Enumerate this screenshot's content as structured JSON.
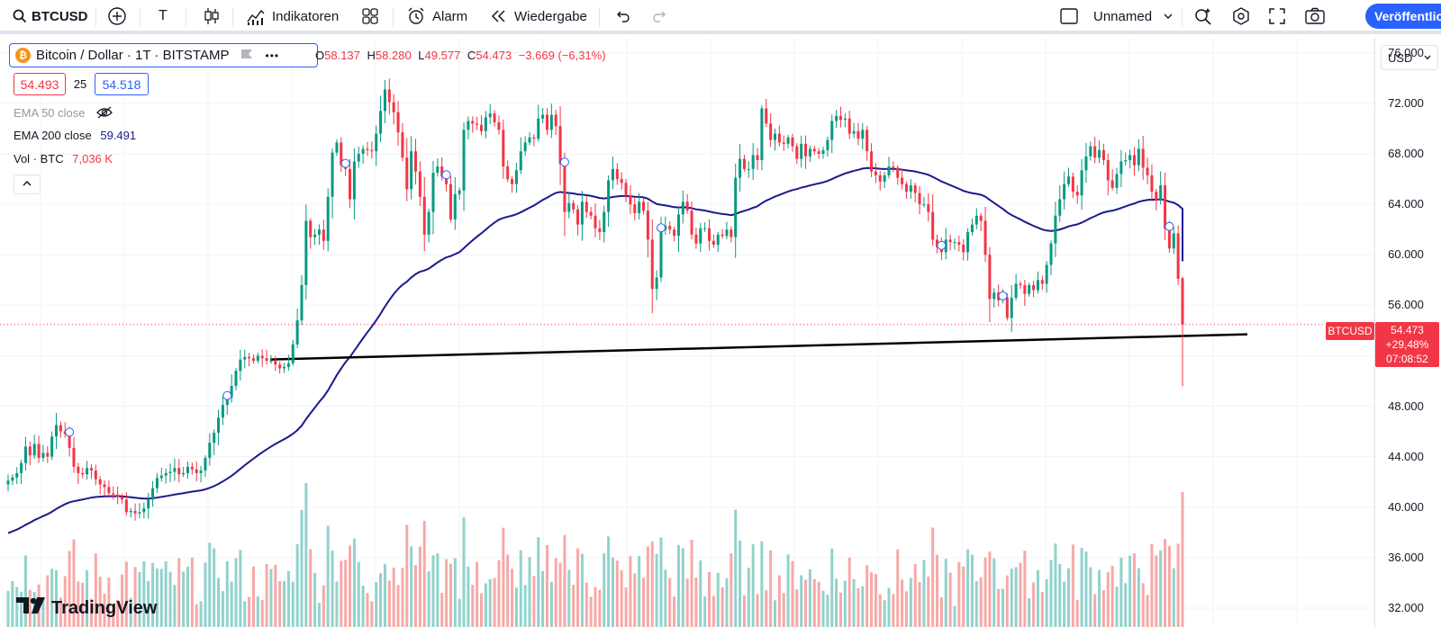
{
  "toolbar": {
    "symbol": "BTCUSD",
    "text_tool": "T",
    "indicators_label": "Indikatoren",
    "alert_label": "Alarm",
    "replay_label": "Wiedergabe",
    "layout_name": "Unnamed",
    "publish_label": "Veröffentlichen"
  },
  "legend": {
    "title": "Bitcoin / Dollar · 1T · BITSTAMP",
    "coin_glyph": "₿",
    "more": "•••",
    "ohlc": {
      "o_label": "O",
      "o": "58.137",
      "h_label": "H",
      "h": "58.280",
      "l_label": "L",
      "l": "49.577",
      "c_label": "C",
      "c": "54.473",
      "change": "−3.669 (−6,31%)"
    },
    "bid": "54.493",
    "spread": "25",
    "ask": "54.518",
    "indicators": [
      {
        "name": "EMA 50 close",
        "value": ""
      },
      {
        "name": "EMA 200 close",
        "value": "59.491"
      },
      {
        "name": "Vol · BTC",
        "value": "7,036 K"
      }
    ]
  },
  "price_scale": {
    "currency": "USD",
    "ticks": [
      "76.000",
      "72.000",
      "68.000",
      "64.000",
      "60.000",
      "56.000",
      "48.000",
      "44.000",
      "40.000",
      "36.000",
      "32.000"
    ],
    "symbol_label": "BTCUSD",
    "last_price": "54.473",
    "last_change": "+29,48%",
    "countdown": "07:08:52"
  },
  "colors": {
    "up": "#089981",
    "down": "#f23645",
    "up_vol": "#92d2cc",
    "down_vol": "#f7a9a7",
    "ema200": "#1a1a8e",
    "trendline": "#000000",
    "accent": "#2962ff"
  },
  "branding": {
    "logo_text": "TradingView"
  },
  "chart_data": {
    "type": "candlestick",
    "symbol": "BTCUSD",
    "timeframe": "1T",
    "exchange": "BITSTAMP",
    "ylim": [
      30500,
      77200
    ],
    "last_close": 54473,
    "closes": [
      42100,
      42350,
      42700,
      43500,
      44800,
      44100,
      45000,
      43900,
      44300,
      44000,
      45600,
      46500,
      46000,
      45800,
      44700,
      43200,
      42700,
      42600,
      43100,
      42900,
      42200,
      41800,
      41600,
      41100,
      41000,
      40800,
      40600,
      39600,
      39700,
      39500,
      39600,
      39900,
      40600,
      41500,
      42300,
      42500,
      42700,
      42800,
      43100,
      42600,
      42700,
      43200,
      43000,
      42700,
      42900,
      43900,
      45100,
      45900,
      47100,
      48100,
      48700,
      49600,
      50800,
      51700,
      51900,
      51800,
      51600,
      52000,
      51800,
      51600,
      51600,
      51300,
      51000,
      51100,
      51400,
      52900,
      54800,
      57600,
      62700,
      61400,
      61600,
      62000,
      61100,
      64600,
      68100,
      68900,
      67100,
      66800,
      64400,
      67400,
      68000,
      68400,
      68300,
      68200,
      69600,
      71400,
      73100,
      72100,
      71300,
      69700,
      67700,
      65200,
      68200,
      66600,
      64600,
      61600,
      63400,
      66500,
      67000,
      66200,
      65600,
      62800,
      64800,
      65100,
      69900,
      70600,
      70400,
      70300,
      69800,
      70900,
      71200,
      70500,
      69900,
      67000,
      66000,
      65600,
      66700,
      68200,
      68900,
      69300,
      69200,
      70800,
      71100,
      69900,
      71100,
      70200,
      67200,
      63400,
      64100,
      63600,
      62400,
      64200,
      63400,
      63100,
      62100,
      61800,
      63400,
      65900,
      66800,
      66000,
      65700,
      64700,
      64000,
      63300,
      64200,
      63500,
      61200,
      57300,
      58200,
      62000,
      62300,
      62000,
      61500,
      63200,
      64200,
      63500,
      61600,
      60900,
      62100,
      62100,
      61100,
      60800,
      61600,
      61500,
      62000,
      61400,
      66100,
      67600,
      66800,
      66800,
      67900,
      67500,
      71600,
      70400,
      69100,
      69600,
      68900,
      68800,
      69300,
      68600,
      67600,
      68800,
      67800,
      68400,
      68200,
      68000,
      68300,
      69100,
      70600,
      71000,
      70700,
      70800,
      69600,
      69800,
      69200,
      69900,
      68200,
      66600,
      66300,
      65800,
      66300,
      67000,
      66900,
      66100,
      65600,
      65000,
      65500,
      64900,
      64000,
      64000,
      63400,
      61200,
      60600,
      60200,
      61200,
      61000,
      61000,
      60800,
      60200,
      61800,
      62400,
      63100,
      62700,
      60000,
      56500,
      57000,
      56400,
      56600,
      55000,
      56600,
      57700,
      57600,
      56900,
      57600,
      57200,
      58000,
      57700,
      59200,
      60900,
      63100,
      64400,
      65600,
      66200,
      65000,
      64700,
      66700,
      67800,
      68600,
      67700,
      68300,
      67500,
      65900,
      65300,
      66400,
      67400,
      67500,
      67900,
      67100,
      68400,
      66900,
      66300,
      65000,
      64300,
      65500,
      62100,
      60500,
      61700,
      58100,
      54473
    ],
    "series": [
      {
        "name": "EMA 200 close",
        "last_value": 59491
      },
      {
        "name": "Vol · BTC",
        "last_value": "7,036 K"
      }
    ],
    "trendline": {
      "start": 51700,
      "end": 53700
    }
  }
}
